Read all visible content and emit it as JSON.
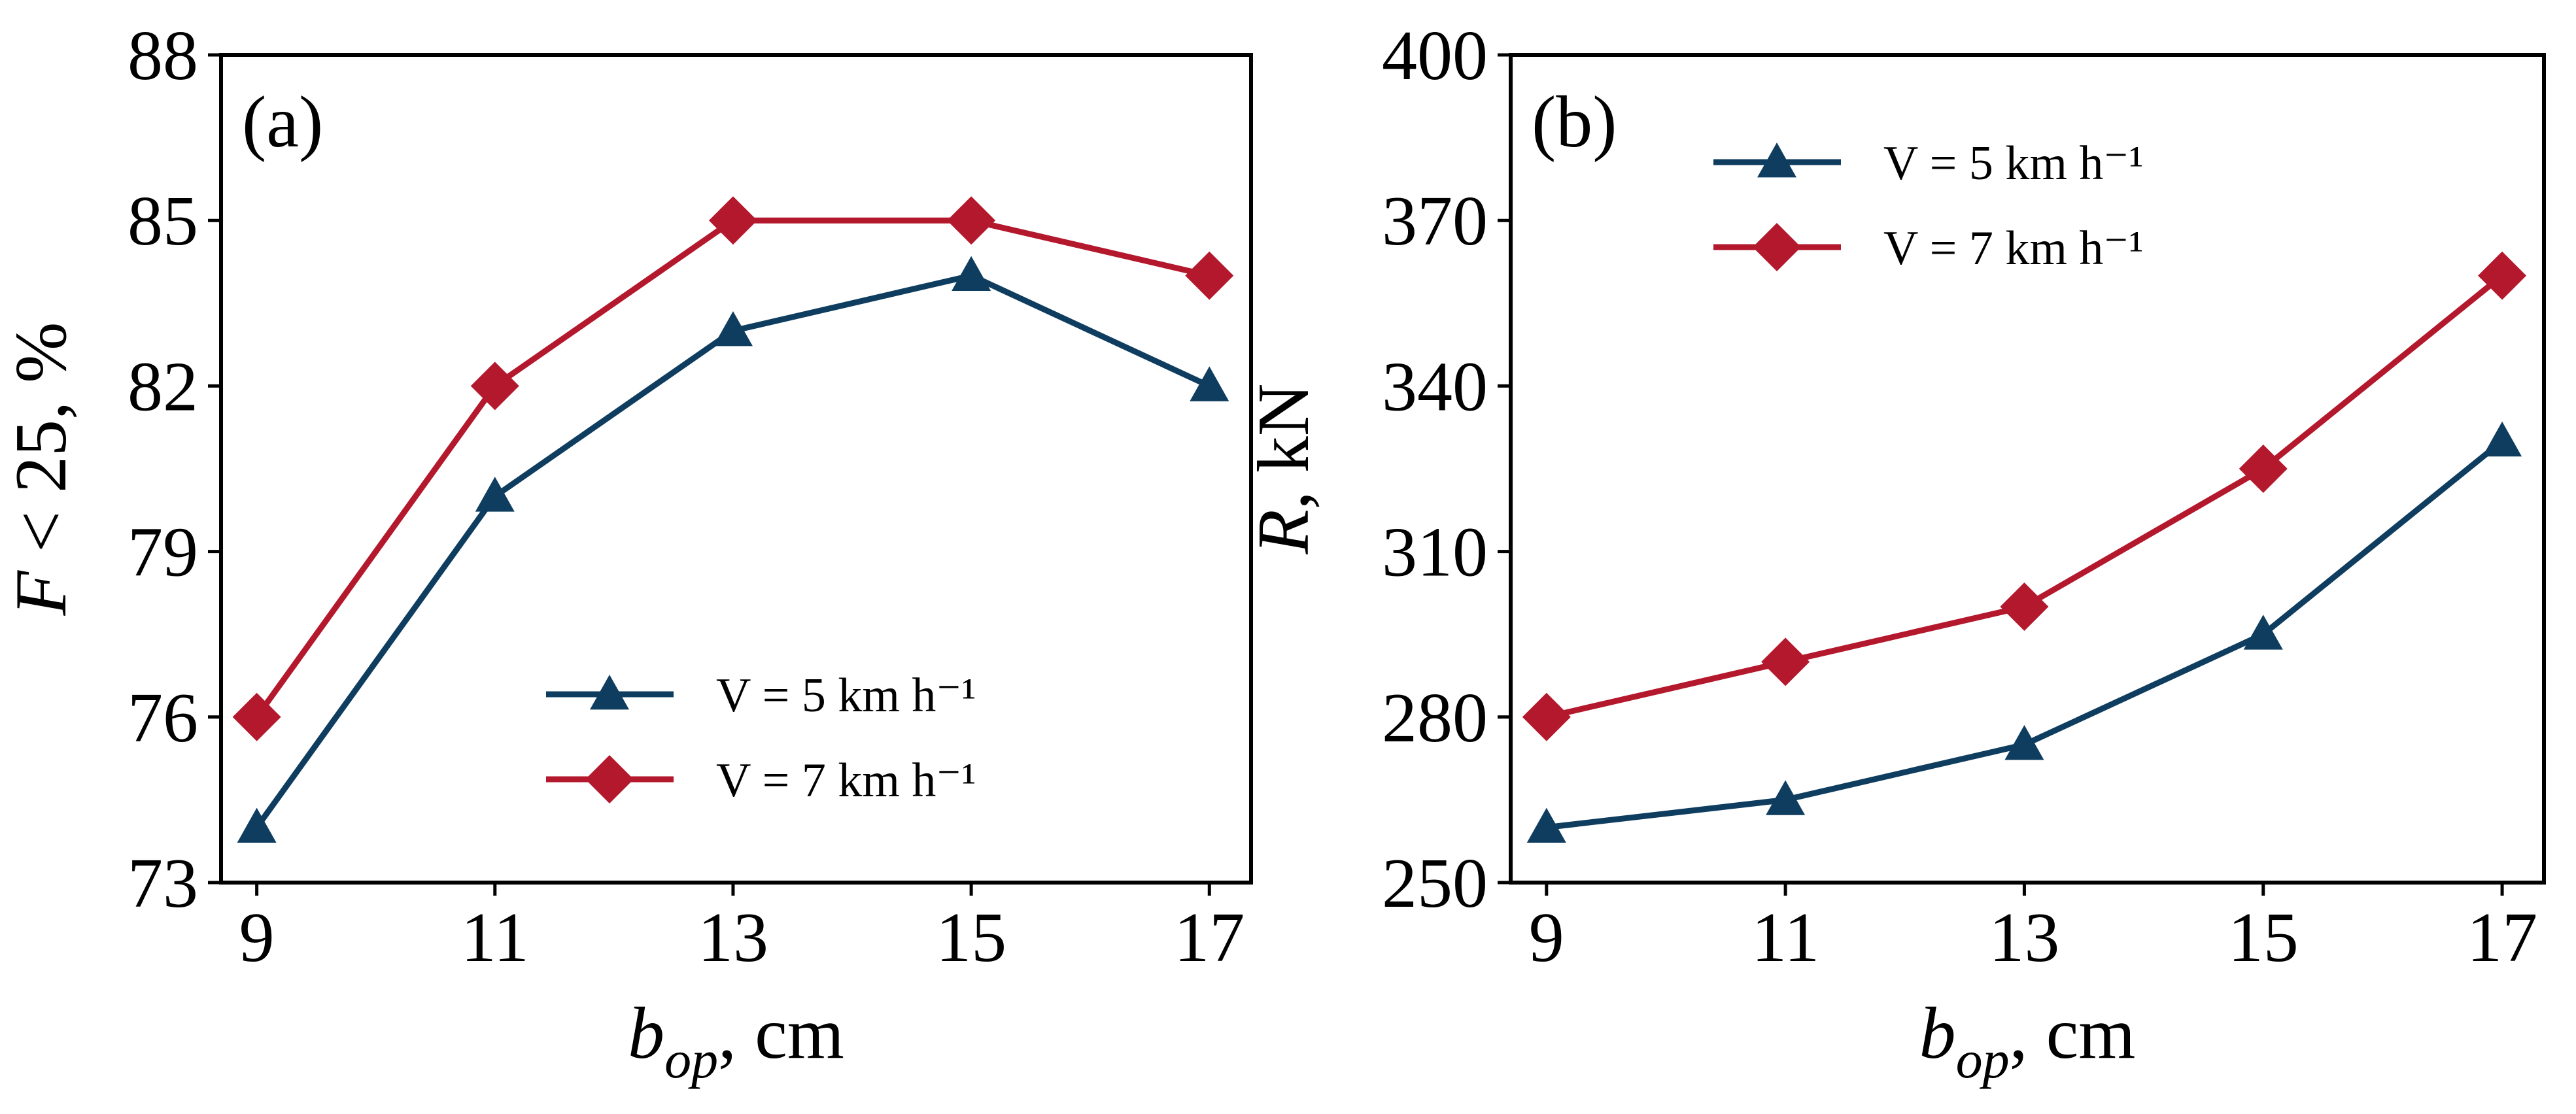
{
  "colors": {
    "v5": "#0f3d5f",
    "v7": "#b4182d"
  },
  "chart_data": [
    {
      "type": "line",
      "panel_label": "(a)",
      "x": [
        9,
        11,
        13,
        15,
        17
      ],
      "x_ticks": [
        "9",
        "11",
        "13",
        "15",
        "17"
      ],
      "xlim": [
        8.7,
        17.35
      ],
      "ylim": [
        73,
        88
      ],
      "y_ticks": [
        "73",
        "76",
        "79",
        "82",
        "85",
        "88"
      ],
      "xlabel": {
        "main": "b",
        "sub": "op",
        "rest": ", cm"
      },
      "ylabel": {
        "main": "F",
        "rest": " < 25, %"
      },
      "legend_position": "lower-right",
      "series": [
        {
          "name": "V = 5 km h⁻¹",
          "marker": "triangle",
          "color_key": "v5",
          "values": [
            74,
            80,
            83,
            84,
            82
          ]
        },
        {
          "name": "V = 7 km h⁻¹",
          "marker": "diamond",
          "color_key": "v7",
          "values": [
            76,
            82,
            85,
            85,
            84
          ]
        }
      ],
      "grid": false
    },
    {
      "type": "line",
      "panel_label": "(b)",
      "x": [
        9,
        11,
        13,
        15,
        17
      ],
      "x_ticks": [
        "9",
        "11",
        "13",
        "15",
        "17"
      ],
      "xlim": [
        8.7,
        17.35
      ],
      "ylim": [
        250,
        400
      ],
      "y_ticks": [
        "250",
        "280",
        "310",
        "340",
        "370",
        "400"
      ],
      "xlabel": {
        "main": "b",
        "sub": "op",
        "rest": ", cm"
      },
      "ylabel": {
        "main": "R",
        "rest": ", kN"
      },
      "legend_position": "upper-left",
      "series": [
        {
          "name": "V = 5 km h⁻¹",
          "marker": "triangle",
          "color_key": "v5",
          "values": [
            260,
            265,
            275,
            295,
            330
          ]
        },
        {
          "name": "V = 7 km h⁻¹",
          "marker": "diamond",
          "color_key": "v7",
          "values": [
            280,
            290,
            300,
            325,
            360
          ]
        }
      ],
      "grid": false
    }
  ]
}
